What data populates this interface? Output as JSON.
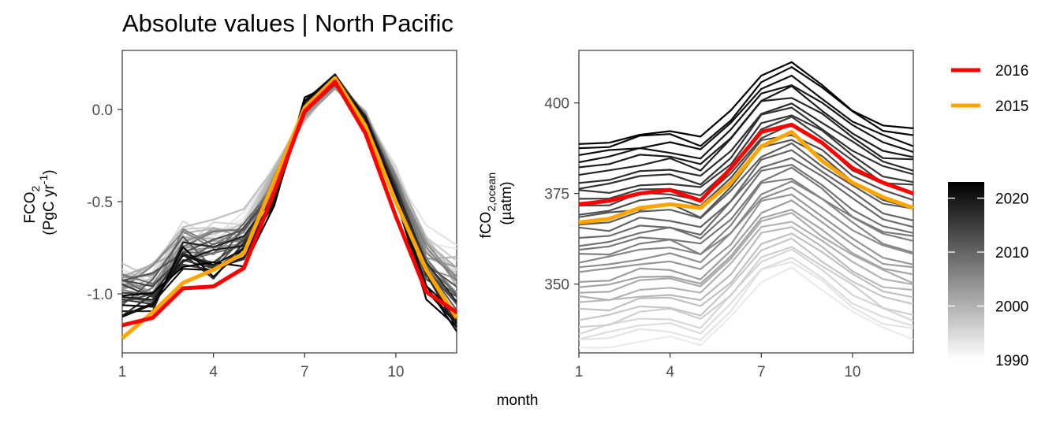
{
  "title": "Absolute values | North Pacific",
  "shared_xlabel": "month",
  "legend": {
    "entries": [
      {
        "label": "2016",
        "color": "#ff0000"
      },
      {
        "label": "2015",
        "color": "#ffa500"
      }
    ],
    "colorbar": {
      "ticks": [
        "2020",
        "2010",
        "2000",
        "1990"
      ],
      "tick_values": [
        2020,
        2010,
        2000,
        1990
      ],
      "range": [
        1990,
        2023
      ],
      "low_color": "#ffffff",
      "high_color": "#000000"
    }
  },
  "chart_data": [
    {
      "type": "line",
      "panel": "left",
      "ylabel_main": "FCO",
      "ylabel_sub": "2",
      "ylabel_unit_pre": "(PgC yr",
      "ylabel_unit_sup": "-1",
      "ylabel_unit_post": ")",
      "xlabel": "month",
      "xlim": [
        1,
        12
      ],
      "ylim": [
        -1.32,
        0.32
      ],
      "xticks": [
        1,
        4,
        7,
        10
      ],
      "xtick_labels": [
        "1",
        "4",
        "7",
        "10"
      ],
      "yticks": [
        0.0,
        -0.5,
        -1.0
      ],
      "ytick_labels": [
        "0.0",
        "-0.5",
        "-1.0"
      ],
      "x": [
        1,
        2,
        3,
        4,
        5,
        6,
        7,
        8,
        9,
        10,
        11,
        12
      ],
      "base_profile": [
        -0.89,
        -0.86,
        -0.68,
        -0.64,
        -0.58,
        -0.3,
        -0.05,
        0.13,
        -0.01,
        -0.33,
        -0.69,
        -0.8
      ],
      "late_profile": [
        -1.06,
        -1.03,
        -0.8,
        -0.87,
        -0.78,
        -0.52,
        0.05,
        0.17,
        -0.07,
        -0.47,
        -0.95,
        -1.17
      ],
      "background_series_years": [
        1990,
        2023
      ],
      "series": [
        {
          "name": "2016",
          "color": "#ff0000",
          "values": [
            -1.17,
            -1.13,
            -0.97,
            -0.96,
            -0.86,
            -0.45,
            -0.01,
            0.15,
            -0.13,
            -0.58,
            -0.99,
            -1.1
          ]
        },
        {
          "name": "2015",
          "color": "#ffa500",
          "values": [
            -1.24,
            -1.1,
            -0.94,
            -0.87,
            -0.78,
            -0.39,
            0.01,
            0.17,
            -0.09,
            -0.5,
            -0.87,
            -1.13
          ]
        }
      ]
    },
    {
      "type": "line",
      "panel": "right",
      "ylabel_main": "fCO",
      "ylabel_sub": "2,ocean",
      "ylabel_unit": "(µatm)",
      "xlabel": "month",
      "xlim": [
        1,
        12
      ],
      "ylim": [
        331,
        414.5
      ],
      "xticks": [
        1,
        4,
        7,
        10
      ],
      "xtick_labels": [
        "1",
        "4",
        "7",
        "10"
      ],
      "yticks": [
        400,
        375,
        350
      ],
      "ytick_labels": [
        "400",
        "375",
        "350"
      ],
      "x": [
        1,
        2,
        3,
        4,
        5,
        6,
        7,
        8,
        9,
        10,
        11,
        12
      ],
      "seasonal_anomaly": [
        0.0,
        0.8,
        3.0,
        3.6,
        1.2,
        9.0,
        19.5,
        22.0,
        16.5,
        10.0,
        5.5,
        3.5
      ],
      "base_start_1990": 332,
      "growth_per_year": 1.72,
      "background_series_years": [
        1990,
        2023
      ],
      "series": [
        {
          "name": "2016",
          "color": "#ff0000",
          "values": [
            372,
            373,
            375,
            376,
            373,
            382,
            392,
            394,
            389,
            382,
            378,
            375
          ]
        },
        {
          "name": "2015",
          "color": "#ffa500",
          "values": [
            367,
            368,
            371,
            372,
            371,
            378,
            388,
            392,
            384,
            378,
            374,
            371
          ]
        }
      ]
    }
  ]
}
